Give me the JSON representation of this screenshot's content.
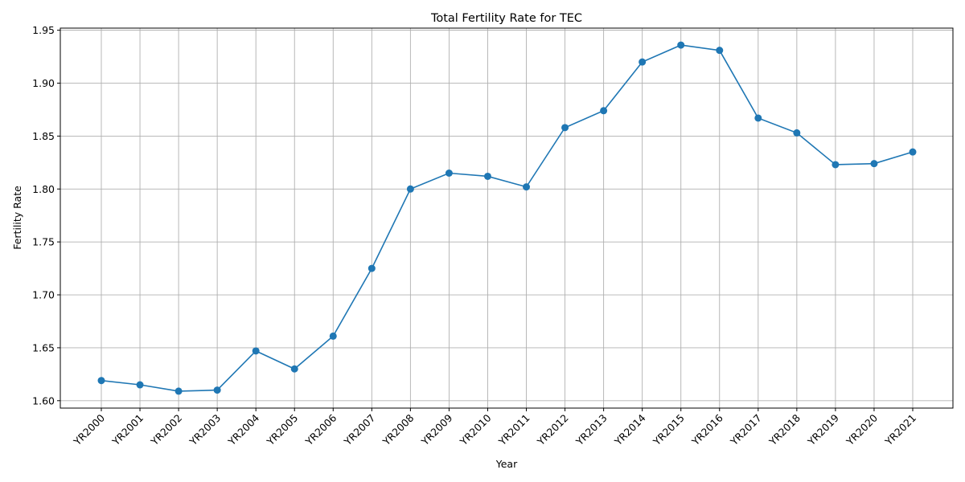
{
  "chart_data": {
    "type": "line",
    "title": "Total Fertility Rate for TEC",
    "xlabel": "Year",
    "ylabel": "Fertility Rate",
    "categories": [
      "YR2000",
      "YR2001",
      "YR2002",
      "YR2003",
      "YR2004",
      "YR2005",
      "YR2006",
      "YR2007",
      "YR2008",
      "YR2009",
      "YR2010",
      "YR2011",
      "YR2012",
      "YR2013",
      "YR2014",
      "YR2015",
      "YR2016",
      "YR2017",
      "YR2018",
      "YR2019",
      "YR2020",
      "YR2021"
    ],
    "series": [
      {
        "values": [
          1.619,
          1.615,
          1.609,
          1.61,
          1.647,
          1.63,
          1.661,
          1.725,
          1.8,
          1.815,
          1.812,
          1.802,
          1.858,
          1.874,
          1.92,
          1.936,
          1.931,
          1.867,
          1.853,
          1.823,
          1.824,
          1.835
        ],
        "color": "#1f77b4",
        "marker": "circle"
      }
    ],
    "yticks": [
      "1.60",
      "1.65",
      "1.70",
      "1.75",
      "1.80",
      "1.85",
      "1.90",
      "1.95"
    ],
    "ylim": [
      1.593,
      1.952
    ],
    "grid": true,
    "xtick_rotation": "45deg"
  }
}
